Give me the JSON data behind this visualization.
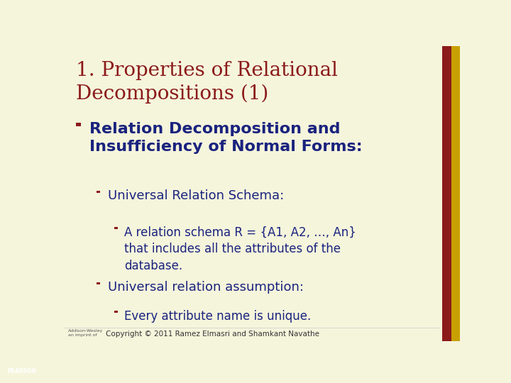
{
  "title": "1. Properties of Relational\nDecompositions (1)",
  "title_color": "#8B1A1A",
  "title_fontsize": 20,
  "bg_color": "#F5F5DC",
  "right_bar_color1": "#8B1A1A",
  "right_bar_color2": "#C8A000",
  "text_color": "#1A237E",
  "bullet_color": "#8B1A1A",
  "bullet_text_l1": "Relation Decomposition and\nInsufficiency of Normal Forms:",
  "bullet_text_l2a": "Universal Relation Schema:",
  "bullet_text_l3a": "A relation schema R = {A1, A2, …, An}\nthat includes all the attributes of the\ndatabase.",
  "bullet_text_l2b": "Universal relation assumption:",
  "bullet_text_l3b": "Every attribute name is unique.",
  "footer": "Copyright © 2011 Ramez Elmasri and Shamkant Navathe",
  "footer_color": "#333333",
  "pearson_color": "#003087",
  "addison_text": "Addison-Wesley\nan imprint of"
}
